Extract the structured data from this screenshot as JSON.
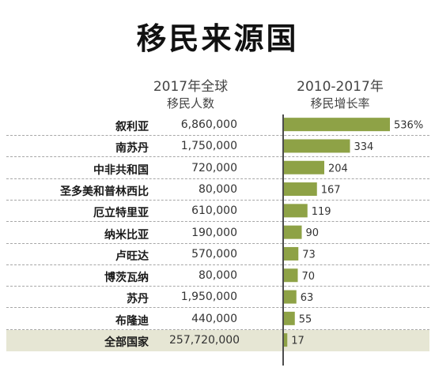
{
  "title": "移民来源国",
  "headers": {
    "population_line1": "2017年全球",
    "population_line2": "移民人数",
    "rate_line1": "2010-2017年",
    "rate_line2": "移民增长率"
  },
  "colors": {
    "bar": "#8ea246",
    "total_row_bg": "#e6e6d4",
    "axis": "#4d4d4d"
  },
  "rows": [
    {
      "country": "叙利亚",
      "population": "6,860,000",
      "rate_label": "536%"
    },
    {
      "country": "南苏丹",
      "population": "1,750,000",
      "rate_label": "334"
    },
    {
      "country": "中非共和国",
      "population": "720,000",
      "rate_label": "204"
    },
    {
      "country": "圣多美和普林西比",
      "population": "80,000",
      "rate_label": "167"
    },
    {
      "country": "厄立特里亚",
      "population": "610,000",
      "rate_label": "119"
    },
    {
      "country": "纳米比亚",
      "population": "190,000",
      "rate_label": "90"
    },
    {
      "country": "卢旺达",
      "population": "570,000",
      "rate_label": "73"
    },
    {
      "country": "博茨瓦纳",
      "population": "80,000",
      "rate_label": "70"
    },
    {
      "country": "苏丹",
      "population": "1,950,000",
      "rate_label": "63"
    },
    {
      "country": "布隆迪",
      "population": "440,000",
      "rate_label": "55"
    },
    {
      "country": "全部国家",
      "population": "257,720,000",
      "rate_label": "17",
      "is_total": true
    }
  ],
  "chart_data": {
    "type": "bar",
    "orientation": "horizontal",
    "title": "移民来源国",
    "categories": [
      "叙利亚",
      "南苏丹",
      "中非共和国",
      "圣多美和普林西比",
      "厄立特里亚",
      "纳米比亚",
      "卢旺达",
      "博茨瓦纳",
      "苏丹",
      "布隆迪",
      "全部国家"
    ],
    "series": [
      {
        "values": [
          536,
          334,
          204,
          167,
          119,
          90,
          73,
          70,
          63,
          55,
          17
        ]
      }
    ],
    "population_2017": [
      6860000,
      1750000,
      720000,
      80000,
      610000,
      190000,
      570000,
      80000,
      1950000,
      440000,
      257720000
    ],
    "value_unit": "%",
    "xlim": [
      0,
      536
    ],
    "legend": "none",
    "grid": false
  }
}
